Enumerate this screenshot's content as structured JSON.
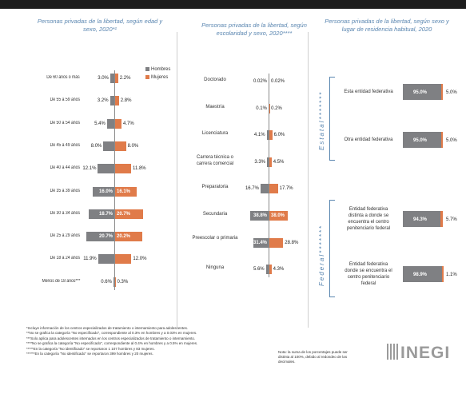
{
  "panels": {
    "left_title": "Personas privadas de la libertad, según edad y sexo, 2020*¹",
    "mid_title": "Personas privadas de la libertad, según escolaridad y sexo, 2020****",
    "right_title": "Personas privadas de la libertad, según sexo y lugar de residencia habitual, 2020"
  },
  "legend": {
    "male": "Hombres",
    "female": "Mujeres",
    "male_color": "#7f8083",
    "female_color": "#e07b4a"
  },
  "right_groups": {
    "estatal": "Estatal*******",
    "federal": "Federal*******"
  },
  "chart_data": [
    {
      "type": "bar",
      "title": "Personas privadas de la libertad, según edad y sexo, 2020*¹",
      "orientation": "back-to-back horizontal",
      "categories": [
        "De 60 años o más",
        "De 55 a 59 años",
        "De 50 a 54 años",
        "De 45 a 49 años",
        "De 40 a 44 años",
        "De 35 a 39 años",
        "De 30 a 34 años",
        "De 25 a 29 años",
        "De 18 a 24 años",
        "Menos de 18 años***"
      ],
      "series": [
        {
          "name": "Hombres",
          "values": [
            3.0,
            3.2,
            5.4,
            8.0,
            12.1,
            16.0,
            18.7,
            20.7,
            11.9,
            0.6
          ],
          "labels": [
            "3.0%",
            "3.2%",
            "5.4%",
            "8.0%",
            "12.1%",
            "16.0%",
            "18.7%",
            "20.7%",
            "11.9%",
            "0.6%"
          ]
        },
        {
          "name": "Mujeres",
          "values": [
            2.2,
            2.8,
            4.7,
            8.0,
            11.8,
            16.1,
            20.7,
            20.2,
            12.0,
            0.3
          ],
          "labels": [
            "2.2%",
            "2.8%",
            "4.7%",
            "8.0%",
            "11.8%",
            "16.1%",
            "20.7%",
            "20.2%",
            "12.0%",
            "0.3%"
          ]
        }
      ]
    },
    {
      "type": "bar",
      "title": "Personas privadas de la libertad, según escolaridad y sexo, 2020****",
      "orientation": "back-to-back horizontal",
      "categories": [
        "Doctorado",
        "Maestría",
        "Licenciatura",
        "Carrera técnica o carrera comercial",
        "Preparatoria",
        "Secundaria",
        "Preescolar o primaria",
        "Ninguna"
      ],
      "series": [
        {
          "name": "Hombres",
          "values": [
            0.02,
            0.1,
            4.1,
            3.3,
            16.7,
            38.8,
            31.4,
            5.6
          ],
          "labels": [
            "0.02%",
            "0.1%",
            "4.1%",
            "3.3%",
            "16.7%",
            "38.8%",
            "31.4%",
            "5.6%"
          ]
        },
        {
          "name": "Mujeres",
          "values": [
            0.02,
            0.2,
            6.0,
            4.5,
            17.7,
            38.0,
            28.8,
            4.3
          ],
          "labels": [
            "0.02%",
            "0.2%",
            "6.0%",
            "4.5%",
            "17.7%",
            "38.0%",
            "28.8%",
            "4.3%"
          ]
        }
      ]
    },
    {
      "type": "bar",
      "title": "Personas privadas de la libertad, según sexo y lugar de residencia habitual, 2020",
      "orientation": "stacked horizontal",
      "categories": [
        "Esta entidad federativa",
        "Otra entidad federativa",
        "Entidad federativa distinta a donde se encuentra el centro penitenciario federal",
        "Entidad federativa donde se encuentra el centro penitenciario federal"
      ],
      "groups": [
        "Estatal*******",
        "Estatal*******",
        "Federal*******",
        "Federal*******"
      ],
      "series": [
        {
          "name": "Hombres",
          "values": [
            95.0,
            95.0,
            94.3,
            98.9
          ],
          "labels": [
            "95.0%",
            "95.0%",
            "94.3%",
            "98.9%"
          ]
        },
        {
          "name": "Mujeres",
          "values": [
            5.0,
            5.0,
            5.7,
            1.1
          ],
          "labels": [
            "5.0%",
            "5.0%",
            "5.7%",
            "1.1%"
          ]
        }
      ]
    }
  ],
  "notes": [
    "*Incluye información de los centros especializados de tratamiento o internamiento para adolescentes.",
    "**No se grafica la categoría \"No especificado\", correspondiente al 0.3% en hombres y a 0.03% en mujeres.",
    "***Solo aplica para adolescentes internados en los centros especializados de tratamiento o internamiento.",
    "****No se grafica la categoría \"No especificado\", correspondiente al 0.4% en hombres y a 0.5% en mujeres.",
    "*****En la categoría \"No identificado\" se reportaron 1 107 hombres y 83 mujeres.",
    "******En la categoría \"No identificado\" se reportaron 399 hombres y 20 mujeres."
  ],
  "side_note": "Nota: la suma de los porcentajes puede ser distinta al 100%, debido al redondeo de las decimales.",
  "logo_text": "INEGI"
}
